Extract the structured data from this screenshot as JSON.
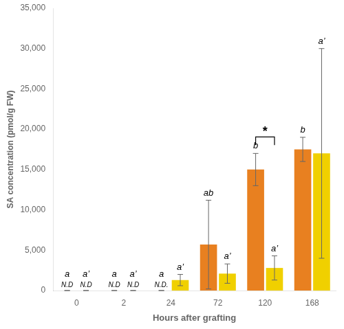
{
  "chart_data": {
    "type": "bar",
    "xlabel": "Hours after grafting",
    "ylabel": "SA concentration (pmol/g FW)",
    "categories": [
      "0",
      "2",
      "24",
      "72",
      "120",
      "168"
    ],
    "series": [
      {
        "color": "#E88020",
        "values": [
          0,
          0,
          0,
          5700,
          15000,
          17500
        ],
        "errors": [
          0,
          0,
          0,
          5500,
          2000,
          1500
        ],
        "letters": [
          "a",
          "a",
          "a",
          "ab",
          "b",
          "b"
        ],
        "nd_labels": [
          "N.D",
          "N.D",
          "N.D.",
          null,
          null,
          null
        ]
      },
      {
        "color": "#F0D000",
        "values": [
          0,
          0,
          1300,
          2100,
          2800,
          17000
        ],
        "errors": [
          0,
          0,
          700,
          1200,
          1500,
          13000
        ],
        "letters": [
          "a’",
          "a’",
          "a’",
          "a’",
          "a’",
          "a’"
        ],
        "nd_labels": [
          "N.D",
          "N.D",
          null,
          null,
          null,
          null
        ]
      }
    ],
    "annotations": [
      {
        "text": "*",
        "category": "120"
      }
    ],
    "ylim": [
      0,
      35000
    ],
    "yticks": [
      0,
      {
        "value": 5000,
        "label": "5,000"
      },
      {
        "value": 10000,
        "label": "10,000"
      },
      {
        "value": 15000,
        "label": "15,000"
      },
      {
        "value": 20000,
        "label": "20,000"
      },
      {
        "value": 25000,
        "label": "25,000"
      },
      {
        "value": 30000,
        "label": "30,000"
      },
      {
        "value": 35000,
        "label": "35,000"
      }
    ],
    "grid": false
  }
}
